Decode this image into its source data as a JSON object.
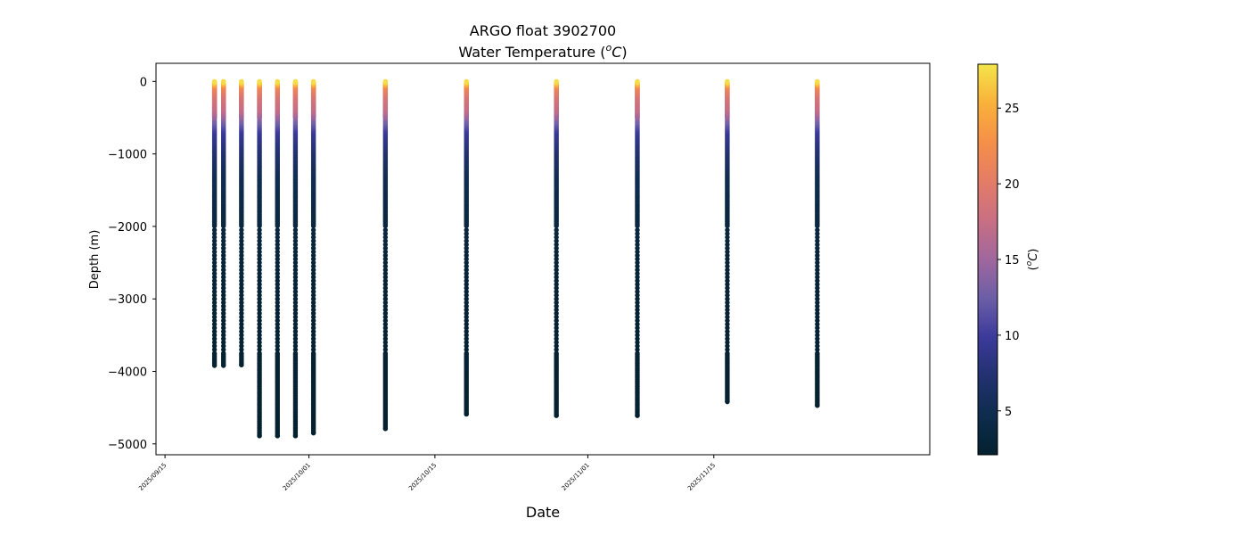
{
  "chart_data": {
    "type": "scatter",
    "title": "ARGO float 3902700",
    "subtitle_prefix": "Water Temperature (",
    "subtitle_unit_base": "C",
    "subtitle_unit_sup": "o",
    "subtitle_suffix": ")",
    "xlabel": "Date",
    "ylabel": "Depth (m)",
    "colorbar_label_prefix": "(",
    "colorbar_label_sup": "o",
    "colorbar_label_base": "C",
    "colorbar_label_suffix": ")",
    "x_axis_type": "date",
    "xlim": [
      "2025-09-14",
      "2025-12-09"
    ],
    "ylim": [
      -5150,
      250
    ],
    "x_ticks": [
      "2025/09/15",
      "2025/10/01",
      "2025/10/15",
      "2025/11/01",
      "2025/11/15"
    ],
    "y_ticks": [
      0,
      -1000,
      -2000,
      -3000,
      -4000,
      -5000
    ],
    "colorbar_range": [
      2.1,
      27.9
    ],
    "colorbar_ticks": [
      5,
      10,
      15,
      20,
      25
    ],
    "colormap": [
      "#03212e",
      "#0e2c4d",
      "#22316f",
      "#3b3a9a",
      "#6b5ea7",
      "#a0679d",
      "#c86f83",
      "#e47c66",
      "#f58f49",
      "#f9b13a",
      "#f3e54a"
    ],
    "grid": false,
    "legend": "none",
    "profiles": [
      {
        "date": "2025-09-20",
        "max_depth": -3920
      },
      {
        "date": "2025-09-21",
        "max_depth": -3920
      },
      {
        "date": "2025-09-23",
        "max_depth": -3910
      },
      {
        "date": "2025-09-25",
        "max_depth": -4890
      },
      {
        "date": "2025-09-27",
        "max_depth": -4890
      },
      {
        "date": "2025-09-29",
        "max_depth": -4890
      },
      {
        "date": "2025-10-01",
        "max_depth": -4850
      },
      {
        "date": "2025-10-09",
        "max_depth": -4790
      },
      {
        "date": "2025-10-18",
        "max_depth": -4590
      },
      {
        "date": "2025-10-28",
        "max_depth": -4610
      },
      {
        "date": "2025-11-06",
        "max_depth": -4610
      },
      {
        "date": "2025-11-16",
        "max_depth": -4420
      },
      {
        "date": "2025-11-26",
        "max_depth": -4470
      }
    ],
    "temperature_profile": [
      {
        "depth": 0,
        "temp": 27.5
      },
      {
        "depth": -30,
        "temp": 26.0
      },
      {
        "depth": -80,
        "temp": 21.5
      },
      {
        "depth": -200,
        "temp": 19.0
      },
      {
        "depth": -400,
        "temp": 17.0
      },
      {
        "depth": -550,
        "temp": 13.0
      },
      {
        "depth": -700,
        "temp": 9.5
      },
      {
        "depth": -1000,
        "temp": 7.0
      },
      {
        "depth": -1300,
        "temp": 5.0
      },
      {
        "depth": -1800,
        "temp": 3.8
      },
      {
        "depth": -2500,
        "temp": 3.0
      },
      {
        "depth": -3500,
        "temp": 2.5
      },
      {
        "depth": -5000,
        "temp": 2.1
      }
    ]
  }
}
